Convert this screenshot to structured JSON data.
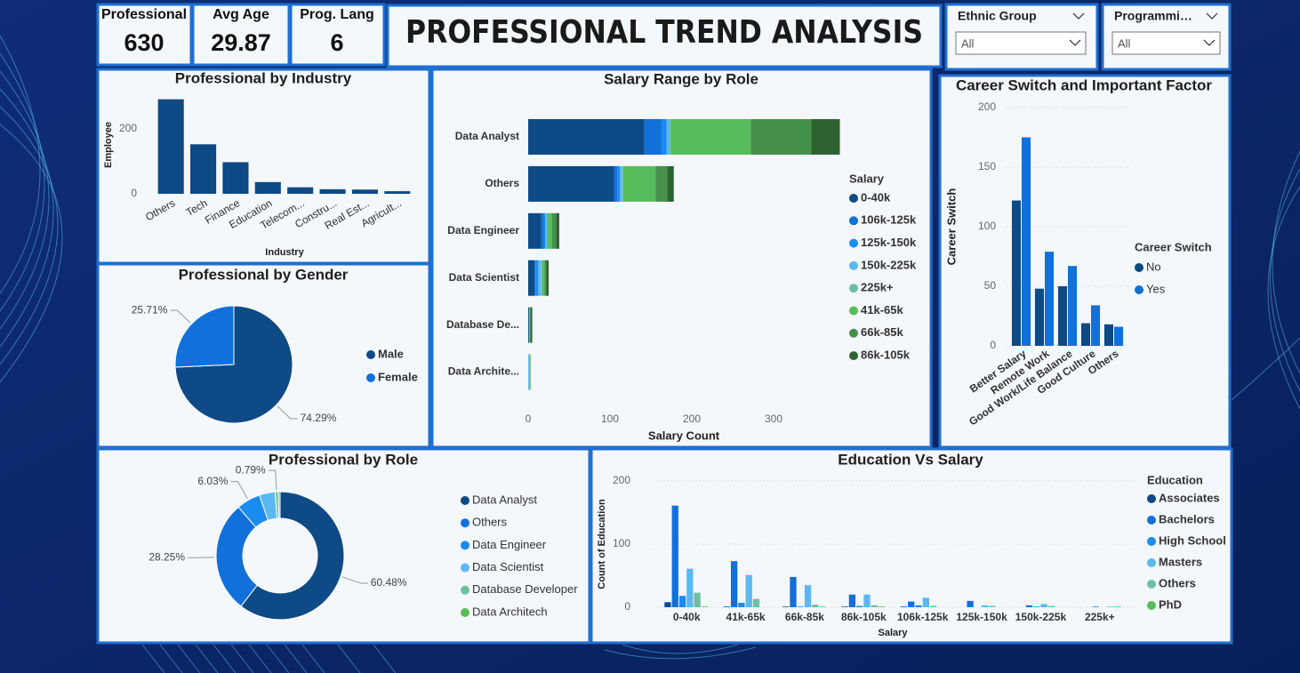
{
  "title": "PROFESSIONAL TREND ANALYSIS",
  "kpis": [
    {
      "label": "Professional",
      "value": 630
    },
    {
      "label": "Avg Age",
      "value": 29.87
    },
    {
      "label": "Prog. Lang",
      "value": 6
    }
  ],
  "slicers": [
    {
      "label": "Ethnic Group",
      "value": "All"
    },
    {
      "label": "Programmi…",
      "value": "All"
    }
  ],
  "chart_data": [
    {
      "type": "bar",
      "title": "Professional by Industry",
      "x_label": "Industry",
      "y_label": "Employee",
      "categories": [
        "Others",
        "Tech",
        "Finance",
        "Education",
        "Telecom...",
        "Constru...",
        "Real Est...",
        "Agricult..."
      ],
      "values": [
        290,
        152,
        97,
        36,
        20,
        14,
        13,
        8
      ],
      "color": "#0e4a85",
      "ylim": [
        0,
        300
      ],
      "yticks": [
        0,
        200
      ],
      "grid": false
    },
    {
      "type": "pie",
      "title": "Professional by Gender",
      "categories": [
        "Male",
        "Female"
      ],
      "values": [
        74.29,
        25.71
      ],
      "value_labels": [
        "74.29%",
        "25.71%"
      ],
      "colors": [
        "#0e4a85",
        "#1170d9"
      ],
      "legend": "right"
    },
    {
      "type": "stacked_bar",
      "orientation": "horizontal",
      "title": "Salary Range by Role",
      "x_label": "Salary Count",
      "legend_title": "Salary",
      "categories": [
        "Data Analyst",
        "Others",
        "Data Engineer",
        "Data Scientist",
        "Database De...",
        "Data Archite..."
      ],
      "series": [
        {
          "name": "0-40k",
          "color": "#0e4a85",
          "values": [
            142,
            105,
            16,
            8,
            1,
            0
          ]
        },
        {
          "name": "106k-125k",
          "color": "#1170d9",
          "values": [
            21,
            4,
            3,
            1,
            0,
            0
          ]
        },
        {
          "name": "125k-150k",
          "color": "#1a8cf0",
          "values": [
            6,
            3,
            2,
            3,
            0,
            0
          ]
        },
        {
          "name": "150k-225k",
          "color": "#5cb8f0",
          "values": [
            4,
            3,
            2,
            4,
            0,
            1
          ]
        },
        {
          "name": "225k+",
          "color": "#6fbfa0",
          "values": [
            1,
            1,
            0,
            1,
            0,
            1
          ]
        },
        {
          "name": "41k-65k",
          "color": "#57bd5a",
          "values": [
            98,
            40,
            6,
            3,
            1,
            1
          ]
        },
        {
          "name": "66k-85k",
          "color": "#45914a",
          "values": [
            74,
            14,
            5,
            2,
            1,
            0
          ]
        },
        {
          "name": "86k-105k",
          "color": "#2e6331",
          "values": [
            35,
            8,
            4,
            3,
            2,
            0
          ]
        }
      ],
      "xlim": [
        0,
        400
      ],
      "xticks": [
        0,
        100,
        200,
        300
      ],
      "legend": "right"
    },
    {
      "type": "grouped_bar",
      "title": "Career Switch and Important Factor",
      "y_label": "Career Switch",
      "legend_title": "Career Switch",
      "categories": [
        "Better Salary",
        "Remote Work",
        "Good Work/Life Balance",
        "Good Culture",
        "Others"
      ],
      "series": [
        {
          "name": "No",
          "color": "#0e4a85",
          "values": [
            122,
            48,
            50,
            19,
            18
          ]
        },
        {
          "name": "Yes",
          "color": "#1170d9",
          "values": [
            175,
            79,
            67,
            34,
            16
          ]
        }
      ],
      "ylim": [
        0,
        200
      ],
      "yticks": [
        0,
        50,
        100,
        150,
        200
      ],
      "grid": true,
      "legend": "right"
    },
    {
      "type": "donut",
      "title": "Professional by Role",
      "categories": [
        "Data Analyst",
        "Others",
        "Data Engineer",
        "Data Scientist",
        "Database Developer",
        "Data Architech"
      ],
      "values": [
        60.48,
        28.25,
        6.03,
        3.97,
        0.79,
        0.48
      ],
      "value_labels": [
        "60.48%",
        "28.25%",
        "6.03%",
        null,
        "0.79%",
        null
      ],
      "colors": [
        "#0e4a85",
        "#1170d9",
        "#1a8cf0",
        "#5cb8f0",
        "#6fbfa0",
        "#57bd5a"
      ],
      "legend": "right"
    },
    {
      "type": "grouped_bar",
      "title": "Education Vs Salary",
      "x_label": "Salary",
      "y_label": "Count of Education",
      "legend_title": "Education",
      "categories": [
        "0-40k",
        "41k-65k",
        "66k-85k",
        "86k-105k",
        "106k-125k",
        "125k-150k",
        "150k-225k",
        "225k+"
      ],
      "series": [
        {
          "name": "Associates",
          "color": "#0e4a85",
          "values": [
            8,
            1,
            1,
            1,
            1,
            0,
            0,
            0
          ]
        },
        {
          "name": "Bachelors",
          "color": "#1170d9",
          "values": [
            161,
            73,
            48,
            20,
            9,
            10,
            3,
            0
          ]
        },
        {
          "name": "High School",
          "color": "#1a8cf0",
          "values": [
            18,
            7,
            1,
            2,
            3,
            0,
            1,
            1
          ]
        },
        {
          "name": "Masters",
          "color": "#5cb8f0",
          "values": [
            61,
            51,
            35,
            20,
            15,
            3,
            5,
            0
          ]
        },
        {
          "name": "Others",
          "color": "#6fbfa0",
          "values": [
            23,
            13,
            4,
            3,
            2,
            2,
            2,
            1
          ]
        },
        {
          "name": "PhD",
          "color": "#57bd5a",
          "values": [
            1,
            0,
            1,
            1,
            0,
            0,
            0,
            1
          ]
        }
      ],
      "ylim": [
        0,
        200
      ],
      "yticks": [
        0,
        100,
        200
      ],
      "grid": true,
      "legend": "right"
    }
  ]
}
